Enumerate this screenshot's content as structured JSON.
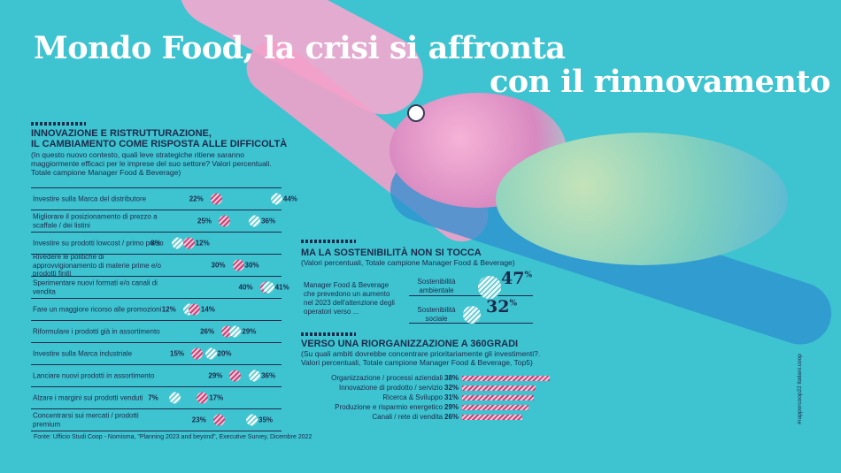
{
  "header": {
    "title_line1": "Mondo Food, la crisi si affronta",
    "title_line2": "con il rinnovamento"
  },
  "colors": {
    "background": "#3ec3d0",
    "navy": "#1d2a4a",
    "pink": "#c8447a",
    "white": "#ffffff"
  },
  "chart_data": [
    {
      "type": "dot",
      "title": "INNOVAZIONE E RISTRUTTURAZIONE, IL CAMBIAMENTO COME RISPOSTA ALLE DIFFICOLTÀ",
      "title_line1": "INNOVAZIONE E RISTRUTTURAZIONE,",
      "title_line2": "IL CAMBIAMENTO COME RISPOSTA ALLE DIFFICOLTÀ",
      "subtitle": "(In questo nuovo contesto, quali leve strategiche ritiene saranno maggiormente efficaci per le imprese del suo settore? Valori percentuali. Totale campione Manager Food & Beverage)",
      "categories": [
        "Investire sulla Marca del distributore",
        "Migliorare il posizionamento di prezzo a scaffale / dei listini",
        "Investire su prodotti lowcost / primo prezo",
        "Rivedere le politiche di approvvigionamento di materie prime e/o prodotti finiti",
        "Sperimentare nuovi formati e/o canali di vendita",
        "Fare un maggiore ricorso alle promozioni",
        "Riformulare i prodotti già in assortimento",
        "Investire sulla Marca industriale",
        "Lanciare nuovi prodotti in assortimento",
        "Alzare i margini sui prodotti venduti",
        "Concentrarsi sui mercati / prodotti premium"
      ],
      "series": [
        {
          "values": [
            22,
            25,
            8,
            30,
            40,
            12,
            26,
            15,
            29,
            7,
            23
          ]
        },
        {
          "values": [
            44,
            36,
            12,
            30,
            41,
            14,
            29,
            20,
            36,
            17,
            35
          ]
        }
      ],
      "value_labels": [
        [
          "22%",
          "44%"
        ],
        [
          "25%",
          "36%"
        ],
        [
          "8%",
          "12%"
        ],
        [
          "30%",
          "30%"
        ],
        [
          "40%",
          "41%"
        ],
        [
          "12%",
          "14%"
        ],
        [
          "26%",
          "29%"
        ],
        [
          "15%",
          "20%"
        ],
        [
          "29%",
          "36%"
        ],
        [
          "7%",
          "17%"
        ],
        [
          "23%",
          "35%"
        ]
      ],
      "pink_series": [
        0,
        0,
        1,
        1,
        0,
        1,
        0,
        0,
        0,
        1,
        0
      ],
      "source": "Fonte: Ufficio Studi Coop - Nomisma, \"Planning 2023 and beyond\", Executive Survey, Dicembre 2022"
    },
    {
      "type": "bubble",
      "title": "MA LA SOSTENIBILITÀ NON SI TOCCA",
      "subtitle": "(Valori percentuali, Totale campione Manager Food  & Beverage)",
      "description": "Manager Food & Beverage che prevedono un aumento nel 2023 dell'attenzione degli operatori verso ...",
      "categories": [
        "Sostenibilità ambientale",
        "Sostenibilità sociale"
      ],
      "labels": [
        [
          "Sostenibilità",
          "ambientale"
        ],
        [
          "Sostenibilità",
          "sociale"
        ]
      ],
      "values": [
        47,
        32
      ],
      "value_text": [
        "47",
        "32"
      ],
      "unit": "%"
    },
    {
      "type": "bar",
      "title": "VERSO UNA RIORGANIZZAZIONE A 360GRADI",
      "subtitle": "(Su quali ambiti dovrebbe concentrare prioritariamente gli investimenti?. Valori percentuali, Totale campione Manager Food  & Beverage, Top5)",
      "categories": [
        "Organizzazione / processi aziendali",
        "Innovazione di prodotto / servizio",
        "Ricerca & Sviluppo",
        "Produzione e risparmio energetico",
        "Canali / rete di vendita"
      ],
      "values": [
        38,
        32,
        31,
        29,
        26
      ],
      "value_labels": [
        "38%",
        "32%",
        "31%",
        "29%",
        "26%"
      ]
    }
  ],
  "credit": "#rapporcoop22 italiani.coop"
}
